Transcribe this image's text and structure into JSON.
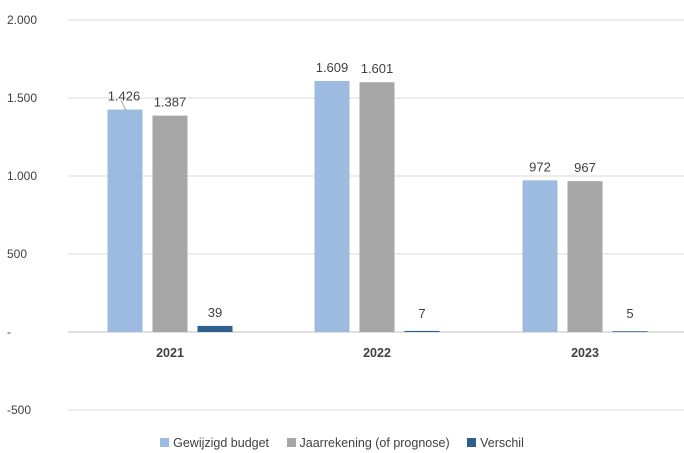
{
  "chart_data": {
    "type": "bar",
    "categories": [
      "2021",
      "2022",
      "2023"
    ],
    "series": [
      {
        "name": "Gewijzigd budget",
        "values": [
          1426,
          1609,
          972
        ],
        "labels": [
          "1.426",
          "1.609",
          "972"
        ],
        "color": "#9dbbe0"
      },
      {
        "name": "Jaarrekening (of prognose)",
        "values": [
          1387,
          1601,
          967
        ],
        "labels": [
          "1.387",
          "1.601",
          "967"
        ],
        "color": "#a6a6a6"
      },
      {
        "name": "Verschil",
        "values": [
          39,
          7,
          5
        ],
        "labels": [
          "39",
          "7",
          "5"
        ],
        "color": "#2e5f8f"
      }
    ],
    "yticks": [
      {
        "value": 2000,
        "label": "2.000"
      },
      {
        "value": 1500,
        "label": "1.500"
      },
      {
        "value": 1000,
        "label": "1.000"
      },
      {
        "value": 500,
        "label": "500"
      },
      {
        "value": 0,
        "label": "-"
      },
      {
        "value": -500,
        "label": "-500"
      }
    ],
    "ylim": [
      -500,
      2000
    ],
    "grid": true,
    "legend_position": "bottom"
  }
}
